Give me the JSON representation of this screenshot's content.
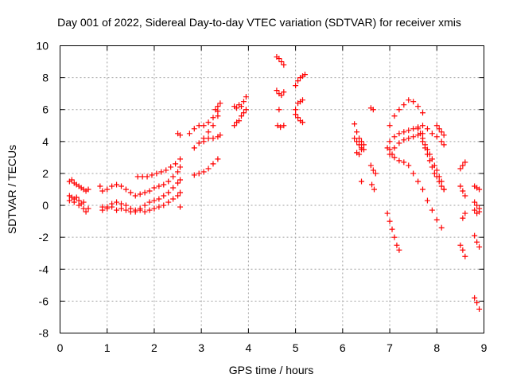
{
  "chart_data": {
    "type": "scatter",
    "title": "Day 001 of 2022, Sidereal Day-to-day VTEC variation (SDTVAR) for receiver xmis",
    "xlabel": "GPS time / hours",
    "ylabel": "SDTVAR / TECUs",
    "xlim": [
      0,
      9
    ],
    "ylim": [
      -8,
      10
    ],
    "xticks": [
      "0",
      "1",
      "2",
      "3",
      "4",
      "5",
      "6",
      "7",
      "8",
      "9"
    ],
    "yticks": [
      "-8",
      "-6",
      "-4",
      "-2",
      "0",
      "2",
      "4",
      "6",
      "8",
      "10"
    ],
    "grid": true,
    "marker": "+",
    "color": "#ff0000",
    "segments": [
      {
        "x": [
          0.2,
          0.25,
          0.3,
          0.35,
          0.4,
          0.45,
          0.5,
          0.55,
          0.6
        ],
        "y": [
          1.5,
          1.6,
          1.4,
          1.3,
          1.2,
          1.1,
          1.0,
          0.9,
          1.0
        ]
      },
      {
        "x": [
          0.2,
          0.25,
          0.3,
          0.35,
          0.4,
          0.45,
          0.5,
          0.55,
          0.6
        ],
        "y": [
          0.6,
          0.5,
          0.4,
          0.5,
          0.3,
          0.1,
          -0.2,
          -0.4,
          -0.2
        ]
      },
      {
        "x": [
          0.2,
          0.3,
          0.4,
          0.5
        ],
        "y": [
          0.3,
          0.2,
          0.0,
          0.2
        ]
      },
      {
        "x": [
          0.85,
          0.9,
          1.0,
          1.1,
          1.2,
          1.3,
          1.4,
          1.5,
          1.6,
          1.7,
          1.8,
          1.9,
          2.0,
          2.1,
          2.2,
          2.3,
          2.4,
          2.5,
          2.55
        ],
        "y": [
          1.2,
          0.9,
          1.0,
          1.2,
          1.3,
          1.2,
          1.0,
          0.8,
          0.6,
          0.7,
          0.8,
          0.9,
          1.1,
          1.2,
          1.3,
          1.5,
          1.8,
          2.1,
          2.4
        ]
      },
      {
        "x": [
          0.9,
          1.0,
          1.1,
          1.2,
          1.3,
          1.4,
          1.5,
          1.6,
          1.7,
          1.8,
          1.9,
          2.0,
          2.1,
          2.2,
          2.3,
          2.4,
          2.5,
          2.55
        ],
        "y": [
          -0.3,
          -0.1,
          0.1,
          0.2,
          0.1,
          0.0,
          -0.2,
          -0.3,
          -0.2,
          0.0,
          0.2,
          0.3,
          0.4,
          0.6,
          0.8,
          1.1,
          1.4,
          1.6
        ]
      },
      {
        "x": [
          0.9,
          1.0,
          1.1,
          1.2,
          1.3,
          1.4,
          1.5,
          1.6,
          1.7,
          1.8,
          1.9,
          2.0,
          2.1,
          2.2,
          2.3,
          2.4,
          2.5,
          2.55
        ],
        "y": [
          -0.1,
          -0.2,
          -0.1,
          -0.3,
          -0.2,
          -0.3,
          -0.4,
          -0.4,
          -0.3,
          -0.4,
          -0.3,
          -0.2,
          -0.1,
          0.0,
          0.2,
          0.4,
          0.6,
          0.8
        ]
      },
      {
        "x": [
          1.65,
          1.75,
          1.85,
          1.95,
          2.05,
          2.15,
          2.25,
          2.35,
          2.45,
          2.55
        ],
        "y": [
          1.8,
          1.8,
          1.8,
          1.9,
          2.0,
          2.1,
          2.2,
          2.4,
          2.6,
          2.9
        ]
      },
      {
        "x": [
          2.5,
          2.55
        ],
        "y": [
          4.5,
          4.4
        ]
      },
      {
        "x": [
          2.55
        ],
        "y": [
          -0.1
        ]
      },
      {
        "x": [
          2.75,
          2.85,
          2.95,
          3.05,
          3.15,
          3.25,
          3.35
        ],
        "y": [
          4.5,
          4.8,
          5.0,
          5.0,
          5.2,
          5.5,
          5.9
        ]
      },
      {
        "x": [
          2.85,
          2.95,
          3.05,
          3.15,
          3.25,
          3.35
        ],
        "y": [
          3.6,
          3.9,
          4.2,
          4.6,
          5.0,
          5.6
        ]
      },
      {
        "x": [
          2.85,
          2.95,
          3.05,
          3.15,
          3.25,
          3.35
        ],
        "y": [
          1.9,
          2.0,
          2.1,
          2.3,
          2.6,
          2.9
        ]
      },
      {
        "x": [
          3.05,
          3.15,
          3.25,
          3.35,
          3.4
        ],
        "y": [
          4.0,
          4.2,
          4.2,
          4.3,
          4.4
        ]
      },
      {
        "x": [
          3.3,
          3.35,
          3.4
        ],
        "y": [
          6.0,
          6.2,
          6.4
        ]
      },
      {
        "x": [
          3.7,
          3.75,
          3.8,
          3.85,
          3.9,
          3.95
        ],
        "y": [
          6.2,
          6.1,
          6.3,
          6.2,
          6.5,
          6.8
        ]
      },
      {
        "x": [
          3.7,
          3.75,
          3.8,
          3.85,
          3.9,
          3.95
        ],
        "y": [
          5.0,
          5.2,
          5.3,
          5.6,
          5.8,
          6.0
        ]
      },
      {
        "x": [
          4.6,
          4.65,
          4.7,
          4.75
        ],
        "y": [
          9.3,
          9.2,
          9.0,
          8.8
        ]
      },
      {
        "x": [
          4.6,
          4.65,
          4.7,
          4.75
        ],
        "y": [
          7.2,
          7.0,
          6.9,
          7.1
        ]
      },
      {
        "x": [
          4.62,
          4.68,
          4.75
        ],
        "y": [
          5.0,
          4.9,
          5.0
        ]
      },
      {
        "x": [
          4.65
        ],
        "y": [
          6.0
        ]
      },
      {
        "x": [
          5.0,
          5.05,
          5.1,
          5.15,
          5.2
        ],
        "y": [
          7.5,
          7.8,
          8.0,
          8.1,
          8.2
        ]
      },
      {
        "x": [
          5.0,
          5.05,
          5.1,
          5.15
        ],
        "y": [
          6.0,
          6.4,
          6.5,
          6.6
        ]
      },
      {
        "x": [
          5.0,
          5.05,
          5.1,
          5.15
        ],
        "y": [
          5.7,
          5.5,
          5.3,
          5.2
        ]
      },
      {
        "x": [
          6.25,
          6.3,
          6.35,
          6.4,
          6.45
        ],
        "y": [
          5.1,
          4.6,
          4.2,
          4.0,
          3.8
        ]
      },
      {
        "x": [
          6.25,
          6.3,
          6.35,
          6.4,
          6.45
        ],
        "y": [
          4.2,
          4.0,
          3.8,
          3.6,
          3.5
        ]
      },
      {
        "x": [
          6.3,
          6.35,
          6.4
        ],
        "y": [
          3.3,
          3.2,
          3.5
        ]
      },
      {
        "x": [
          6.4
        ],
        "y": [
          1.5
        ]
      },
      {
        "x": [
          6.6,
          6.65
        ],
        "y": [
          6.1,
          6.0
        ]
      },
      {
        "x": [
          6.6,
          6.65,
          6.7
        ],
        "y": [
          2.5,
          2.2,
          2.0
        ]
      },
      {
        "x": [
          6.62,
          6.67
        ],
        "y": [
          1.3,
          1.0
        ]
      },
      {
        "x": [
          6.95,
          7.0,
          7.05,
          7.1,
          7.15,
          7.2
        ],
        "y": [
          -0.5,
          -1.0,
          -1.5,
          -2.0,
          -2.5,
          -2.8
        ]
      },
      {
        "x": [
          7.0,
          7.1,
          7.2,
          7.3,
          7.4,
          7.5,
          7.6,
          7.7
        ],
        "y": [
          5.0,
          5.6,
          6.0,
          6.3,
          6.6,
          6.5,
          6.2,
          5.8
        ]
      },
      {
        "x": [
          7.0,
          7.1,
          7.2,
          7.3,
          7.4,
          7.5,
          7.6,
          7.7,
          7.8,
          7.9,
          8.0,
          8.1,
          8.15
        ],
        "y": [
          4.0,
          4.3,
          4.5,
          4.6,
          4.7,
          4.8,
          4.9,
          5.0,
          4.8,
          4.5,
          4.3,
          4.0,
          3.8
        ]
      },
      {
        "x": [
          6.95,
          7.0,
          7.05,
          7.1,
          7.2,
          7.3,
          7.4,
          7.5,
          7.6,
          7.7,
          7.8,
          7.9,
          8.0,
          8.1
        ],
        "y": [
          3.6,
          3.5,
          3.2,
          3.0,
          2.8,
          2.7,
          2.5,
          2.0,
          1.5,
          1.0,
          0.3,
          -0.3,
          -0.9,
          -1.4
        ]
      },
      {
        "x": [
          7.0,
          7.1,
          7.2,
          7.3,
          7.4,
          7.5,
          7.6,
          7.7
        ],
        "y": [
          3.2,
          3.6,
          3.9,
          4.1,
          4.2,
          4.3,
          4.4,
          4.5
        ]
      },
      {
        "x": [
          7.6,
          7.65,
          7.7,
          7.75,
          7.8,
          7.85,
          7.9,
          7.95,
          8.0,
          8.05,
          8.1,
          8.15
        ],
        "y": [
          4.8,
          4.5,
          4.2,
          3.8,
          3.5,
          3.2,
          2.9,
          2.5,
          2.2,
          1.8,
          1.5,
          1.0
        ]
      },
      {
        "x": [
          7.65,
          7.7,
          7.75,
          7.8,
          7.85,
          7.9,
          7.95,
          8.0,
          8.05,
          8.1,
          8.15
        ],
        "y": [
          4.5,
          4.0,
          3.6,
          3.2,
          2.8,
          2.4,
          2.0,
          1.8,
          1.5,
          1.2,
          1.0
        ]
      },
      {
        "x": [
          8.0,
          8.05,
          8.1,
          8.15
        ],
        "y": [
          5.0,
          4.8,
          4.6,
          4.4
        ]
      },
      {
        "x": [
          8.5,
          8.55,
          8.6
        ],
        "y": [
          2.3,
          2.5,
          2.7
        ]
      },
      {
        "x": [
          8.5,
          8.55,
          8.6
        ],
        "y": [
          1.2,
          0.9,
          0.6
        ]
      },
      {
        "x": [
          8.5,
          8.55,
          8.6
        ],
        "y": [
          -2.5,
          -2.8,
          -3.2
        ]
      },
      {
        "x": [
          8.55,
          8.6
        ],
        "y": [
          -0.8,
          -0.5
        ]
      },
      {
        "x": [
          8.8,
          8.85,
          8.9
        ],
        "y": [
          1.2,
          1.1,
          1.0
        ]
      },
      {
        "x": [
          8.8,
          8.85,
          8.9
        ],
        "y": [
          0.2,
          0.0,
          -0.2
        ]
      },
      {
        "x": [
          8.8,
          8.85,
          8.9
        ],
        "y": [
          -0.3,
          -0.5,
          -0.4
        ]
      },
      {
        "x": [
          8.8,
          8.85,
          8.9
        ],
        "y": [
          -1.9,
          -2.3,
          -2.6
        ]
      },
      {
        "x": [
          8.8,
          8.85,
          8.9
        ],
        "y": [
          -5.8,
          -6.1,
          -6.5
        ]
      }
    ]
  }
}
